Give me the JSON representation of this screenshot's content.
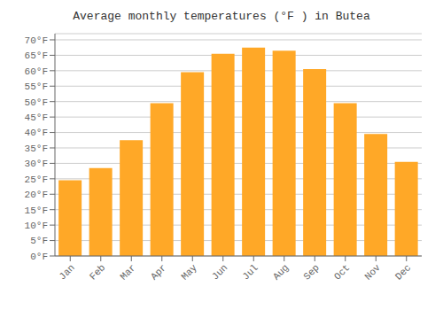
{
  "chart_data": {
    "type": "bar",
    "title": "Average monthly temperatures (°F ) in Butea",
    "categories": [
      "Jan",
      "Feb",
      "Mar",
      "Apr",
      "May",
      "Jun",
      "Jul",
      "Aug",
      "Sep",
      "Oct",
      "Nov",
      "Dec"
    ],
    "values": [
      24.5,
      28.5,
      37.5,
      49.5,
      59.5,
      65.5,
      67.5,
      66.5,
      60.5,
      49.5,
      39.5,
      30.5
    ],
    "color": "#FFA827",
    "ylim": [
      0,
      72
    ],
    "yticks": [
      {
        "value": 0,
        "label": "0°F"
      },
      {
        "value": 5,
        "label": "5°F"
      },
      {
        "value": 10,
        "label": "10°F"
      },
      {
        "value": 15,
        "label": "15°F"
      },
      {
        "value": 20,
        "label": "20°F"
      },
      {
        "value": 25,
        "label": "25°F"
      },
      {
        "value": 30,
        "label": "30°F"
      },
      {
        "value": 35,
        "label": "35°F"
      },
      {
        "value": 40,
        "label": "40°F"
      },
      {
        "value": 45,
        "label": "45°F"
      },
      {
        "value": 50,
        "label": "50°F"
      },
      {
        "value": 55,
        "label": "55°F"
      },
      {
        "value": 60,
        "label": "60°F"
      },
      {
        "value": 65,
        "label": "65°F"
      },
      {
        "value": 70,
        "label": "70°F"
      }
    ],
    "grid": true
  }
}
